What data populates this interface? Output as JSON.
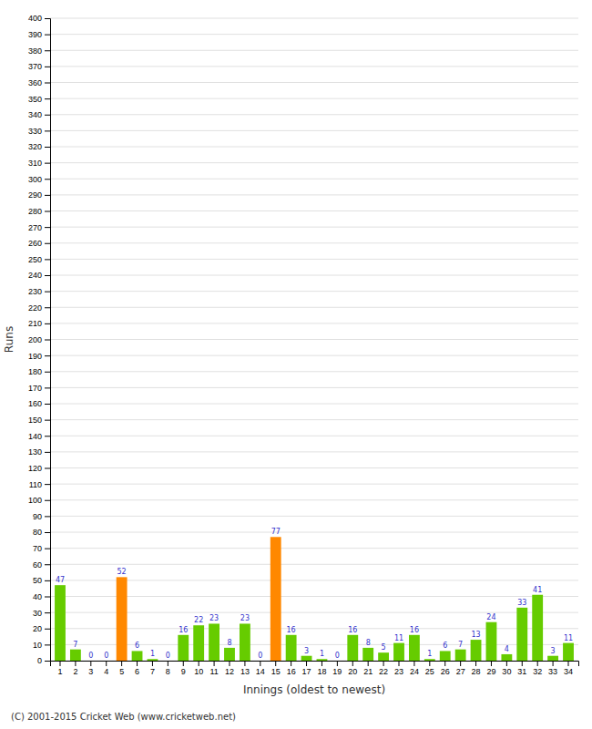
{
  "chart_data": {
    "type": "bar",
    "xlabel": "Innings (oldest to newest)",
    "ylabel": "Runs",
    "categories": [
      "1",
      "2",
      "3",
      "4",
      "5",
      "6",
      "7",
      "8",
      "9",
      "10",
      "11",
      "12",
      "13",
      "14",
      "15",
      "16",
      "17",
      "18",
      "19",
      "20",
      "21",
      "22",
      "23",
      "24",
      "25",
      "26",
      "27",
      "28",
      "29",
      "30",
      "31",
      "32",
      "33",
      "34"
    ],
    "values": [
      47,
      7,
      0,
      0,
      52,
      6,
      1,
      0,
      16,
      22,
      23,
      8,
      23,
      0,
      77,
      16,
      3,
      1,
      0,
      16,
      8,
      5,
      11,
      16,
      1,
      6,
      7,
      13,
      24,
      4,
      33,
      41,
      3,
      11
    ],
    "colors": [
      "#66cc00",
      "#66cc00",
      "#66cc00",
      "#66cc00",
      "#ff8800",
      "#66cc00",
      "#66cc00",
      "#66cc00",
      "#66cc00",
      "#66cc00",
      "#66cc00",
      "#66cc00",
      "#66cc00",
      "#66cc00",
      "#ff8800",
      "#66cc00",
      "#66cc00",
      "#66cc00",
      "#66cc00",
      "#66cc00",
      "#66cc00",
      "#66cc00",
      "#66cc00",
      "#66cc00",
      "#66cc00",
      "#66cc00",
      "#66cc00",
      "#66cc00",
      "#66cc00",
      "#66cc00",
      "#66cc00",
      "#66cc00",
      "#66cc00",
      "#66cc00"
    ],
    "ylim": [
      0,
      400
    ],
    "yticks": [
      0,
      10,
      20,
      30,
      40,
      50,
      60,
      70,
      80,
      90,
      100,
      110,
      120,
      130,
      140,
      150,
      160,
      170,
      180,
      190,
      200,
      210,
      220,
      230,
      240,
      250,
      260,
      270,
      280,
      290,
      300,
      310,
      320,
      330,
      340,
      350,
      360,
      370,
      380,
      390,
      400
    ],
    "grid": true,
    "data_labels": true,
    "annotations": [
      "(C) 2001-2015 Cricket Web (www.cricketweb.net)"
    ]
  }
}
